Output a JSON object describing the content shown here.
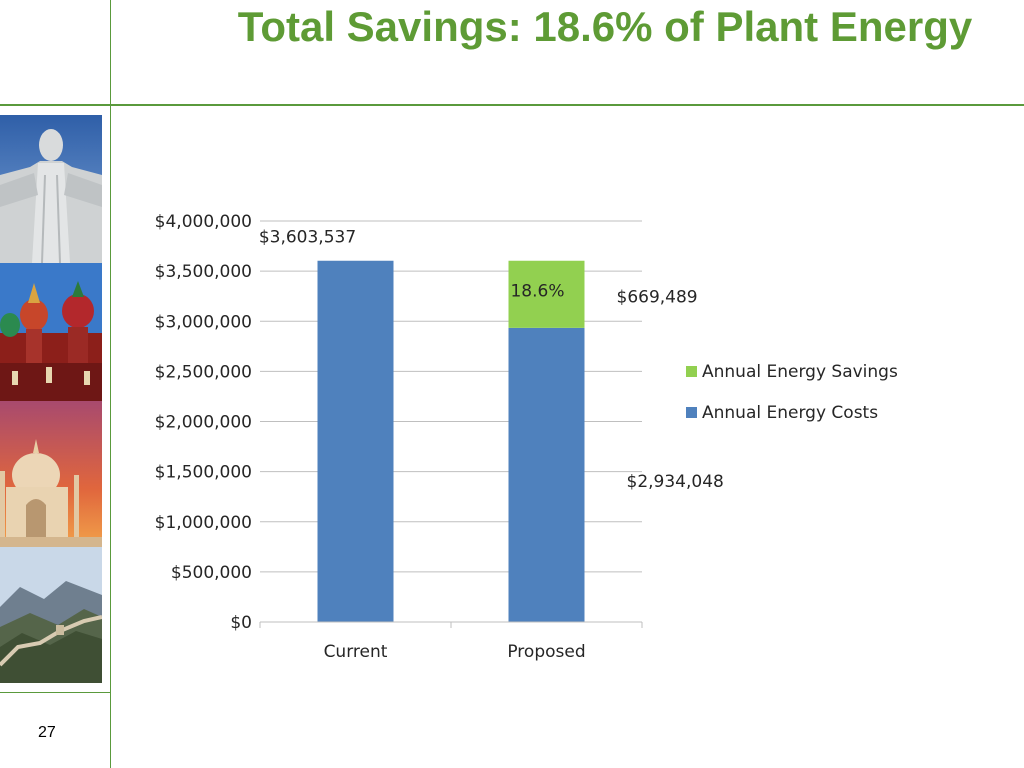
{
  "slide": {
    "title": "Total Savings: 18.6% of Plant Energy",
    "page_number": "27"
  },
  "images": [
    {
      "name": "christ-redeemer-photo"
    },
    {
      "name": "st-basil-cathedral-photo"
    },
    {
      "name": "taj-mahal-photo"
    },
    {
      "name": "great-wall-photo"
    }
  ],
  "colors": {
    "accent_green": "#5e9b35",
    "costs_blue": "#4f81bd",
    "savings_green": "#92d050",
    "gridline": "#bfbfbf"
  },
  "chart_data": {
    "type": "bar",
    "stacked": true,
    "categories": [
      "Current",
      "Proposed"
    ],
    "series": [
      {
        "name": "Annual Energy Costs",
        "values": [
          3603537,
          2934048
        ],
        "color": "#4f81bd"
      },
      {
        "name": "Annual Energy Savings",
        "values": [
          0,
          669489
        ],
        "color": "#92d050"
      }
    ],
    "y_ticks": [
      "$0",
      "$500,000",
      "$1,000,000",
      "$1,500,000",
      "$2,000,000",
      "$2,500,000",
      "$3,000,000",
      "$3,500,000",
      "$4,000,000"
    ],
    "ylim": [
      0,
      4000000
    ],
    "grid": true,
    "legend_position": "right",
    "legend": [
      "Annual Energy Savings",
      "Annual Energy Costs"
    ],
    "data_labels": {
      "current_total": "$3,603,537",
      "savings_amount": "$669,489",
      "savings_percent": "18.6%",
      "proposed_costs": "$2,934,048"
    }
  }
}
